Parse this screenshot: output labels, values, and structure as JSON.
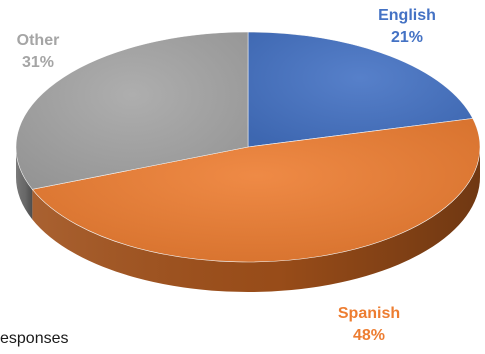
{
  "chart_data": {
    "type": "pie",
    "style": "3d",
    "slices": [
      {
        "name": "English",
        "value": 21,
        "label": "21%",
        "color": "#4472C4",
        "side_color": "#2F528F"
      },
      {
        "name": "Spanish",
        "value": 48,
        "label": "48%",
        "color": "#ED7D31",
        "side_color": "#A0501A"
      },
      {
        "name": "Other",
        "value": 31,
        "label": "31%",
        "color": "#A5A5A5",
        "side_color": "#6E6E6E"
      }
    ],
    "label_colors": {
      "English": "#4472C4",
      "Spanish": "#ED7D31",
      "Other": "#A5A5A5"
    }
  },
  "footnote": "esponses"
}
